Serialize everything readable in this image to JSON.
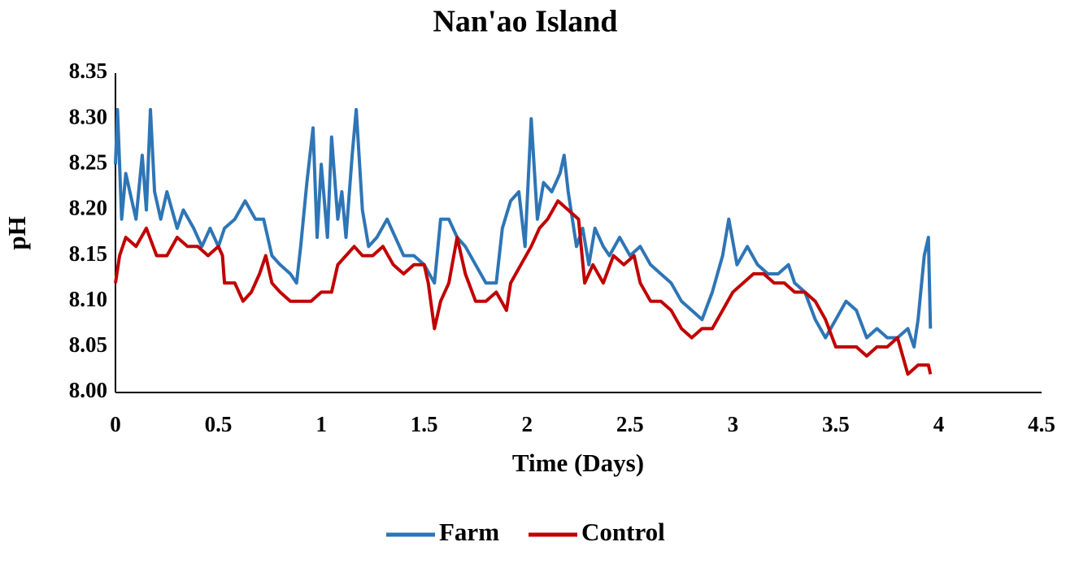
{
  "chart_data": {
    "type": "line",
    "title": "Nan'ao Island",
    "x_label": "Time (Days)",
    "y_label": "pH",
    "xlim": [
      0,
      4.5
    ],
    "xticks": [
      0,
      0.5,
      1,
      1.5,
      2,
      2.5,
      3,
      3.5,
      4,
      4.5
    ],
    "ylim": [
      8.0,
      8.35
    ],
    "yticks": [
      {
        "value": 8.0,
        "label": "8.00"
      },
      {
        "value": 8.05,
        "label": "8.05"
      },
      {
        "value": 8.1,
        "label": "8.10"
      },
      {
        "value": 8.15,
        "label": "8.15"
      },
      {
        "value": 8.2,
        "label": "8.20"
      },
      {
        "value": 8.25,
        "label": "8.25"
      },
      {
        "value": 8.3,
        "label": "8.30"
      },
      {
        "value": 8.35,
        "label": "8.35"
      }
    ],
    "grid": false,
    "legend": "bottom",
    "series": [
      {
        "name": "Farm",
        "color": "#2e75b6",
        "x": [
          0,
          0.01,
          0.03,
          0.05,
          0.08,
          0.1,
          0.13,
          0.15,
          0.17,
          0.19,
          0.22,
          0.25,
          0.3,
          0.33,
          0.38,
          0.42,
          0.46,
          0.5,
          0.53,
          0.58,
          0.63,
          0.68,
          0.72,
          0.76,
          0.8,
          0.85,
          0.88,
          0.9,
          0.93,
          0.96,
          0.98,
          1.0,
          1.03,
          1.05,
          1.08,
          1.1,
          1.12,
          1.15,
          1.17,
          1.2,
          1.23,
          1.27,
          1.32,
          1.36,
          1.4,
          1.45,
          1.5,
          1.55,
          1.58,
          1.62,
          1.66,
          1.7,
          1.75,
          1.8,
          1.85,
          1.88,
          1.92,
          1.96,
          1.99,
          2.02,
          2.05,
          2.08,
          2.12,
          2.16,
          2.18,
          2.2,
          2.24,
          2.27,
          2.3,
          2.33,
          2.37,
          2.4,
          2.45,
          2.5,
          2.55,
          2.6,
          2.65,
          2.7,
          2.75,
          2.8,
          2.85,
          2.9,
          2.95,
          2.98,
          3.02,
          3.07,
          3.12,
          3.17,
          3.22,
          3.27,
          3.3,
          3.35,
          3.4,
          3.45,
          3.5,
          3.55,
          3.6,
          3.65,
          3.7,
          3.75,
          3.8,
          3.85,
          3.88,
          3.9,
          3.93,
          3.95,
          3.96
        ],
        "values": [
          8.25,
          8.31,
          8.19,
          8.24,
          8.21,
          8.19,
          8.26,
          8.2,
          8.31,
          8.22,
          8.19,
          8.22,
          8.18,
          8.2,
          8.18,
          8.16,
          8.18,
          8.16,
          8.18,
          8.19,
          8.21,
          8.19,
          8.19,
          8.15,
          8.14,
          8.13,
          8.12,
          8.16,
          8.23,
          8.29,
          8.17,
          8.25,
          8.17,
          8.28,
          8.19,
          8.22,
          8.17,
          8.26,
          8.31,
          8.2,
          8.16,
          8.17,
          8.19,
          8.17,
          8.15,
          8.15,
          8.14,
          8.12,
          8.19,
          8.19,
          8.17,
          8.16,
          8.14,
          8.12,
          8.12,
          8.18,
          8.21,
          8.22,
          8.16,
          8.3,
          8.19,
          8.23,
          8.22,
          8.24,
          8.26,
          8.22,
          8.16,
          8.18,
          8.14,
          8.18,
          8.16,
          8.15,
          8.17,
          8.15,
          8.16,
          8.14,
          8.13,
          8.12,
          8.1,
          8.09,
          8.08,
          8.11,
          8.15,
          8.19,
          8.14,
          8.16,
          8.14,
          8.13,
          8.13,
          8.14,
          8.12,
          8.11,
          8.08,
          8.06,
          8.08,
          8.1,
          8.09,
          8.06,
          8.07,
          8.06,
          8.06,
          8.07,
          8.05,
          8.08,
          8.15,
          8.17,
          8.07
        ]
      },
      {
        "name": "Control",
        "color": "#c00000",
        "x": [
          0,
          0.02,
          0.05,
          0.1,
          0.15,
          0.2,
          0.25,
          0.3,
          0.35,
          0.4,
          0.45,
          0.5,
          0.52,
          0.53,
          0.58,
          0.62,
          0.66,
          0.7,
          0.73,
          0.76,
          0.8,
          0.85,
          0.9,
          0.95,
          1.0,
          1.05,
          1.08,
          1.12,
          1.16,
          1.2,
          1.25,
          1.3,
          1.35,
          1.4,
          1.45,
          1.5,
          1.52,
          1.55,
          1.58,
          1.62,
          1.66,
          1.7,
          1.75,
          1.8,
          1.85,
          1.9,
          1.92,
          1.97,
          2.02,
          2.06,
          2.1,
          2.15,
          2.2,
          2.25,
          2.28,
          2.32,
          2.37,
          2.42,
          2.47,
          2.52,
          2.55,
          2.6,
          2.65,
          2.7,
          2.75,
          2.8,
          2.85,
          2.9,
          2.95,
          3.0,
          3.05,
          3.1,
          3.15,
          3.2,
          3.25,
          3.3,
          3.35,
          3.4,
          3.45,
          3.5,
          3.55,
          3.6,
          3.65,
          3.7,
          3.75,
          3.8,
          3.85,
          3.9,
          3.95,
          3.96
        ],
        "values": [
          8.12,
          8.15,
          8.17,
          8.16,
          8.18,
          8.15,
          8.15,
          8.17,
          8.16,
          8.16,
          8.15,
          8.16,
          8.15,
          8.12,
          8.12,
          8.1,
          8.11,
          8.13,
          8.15,
          8.12,
          8.11,
          8.1,
          8.1,
          8.1,
          8.11,
          8.11,
          8.14,
          8.15,
          8.16,
          8.15,
          8.15,
          8.16,
          8.14,
          8.13,
          8.14,
          8.14,
          8.12,
          8.07,
          8.1,
          8.12,
          8.17,
          8.13,
          8.1,
          8.1,
          8.11,
          8.09,
          8.12,
          8.14,
          8.16,
          8.18,
          8.19,
          8.21,
          8.2,
          8.19,
          8.12,
          8.14,
          8.12,
          8.15,
          8.14,
          8.15,
          8.12,
          8.1,
          8.1,
          8.09,
          8.07,
          8.06,
          8.07,
          8.07,
          8.09,
          8.11,
          8.12,
          8.13,
          8.13,
          8.12,
          8.12,
          8.11,
          8.11,
          8.1,
          8.08,
          8.05,
          8.05,
          8.05,
          8.04,
          8.05,
          8.05,
          8.06,
          8.02,
          8.03,
          8.03,
          8.02
        ]
      }
    ]
  }
}
